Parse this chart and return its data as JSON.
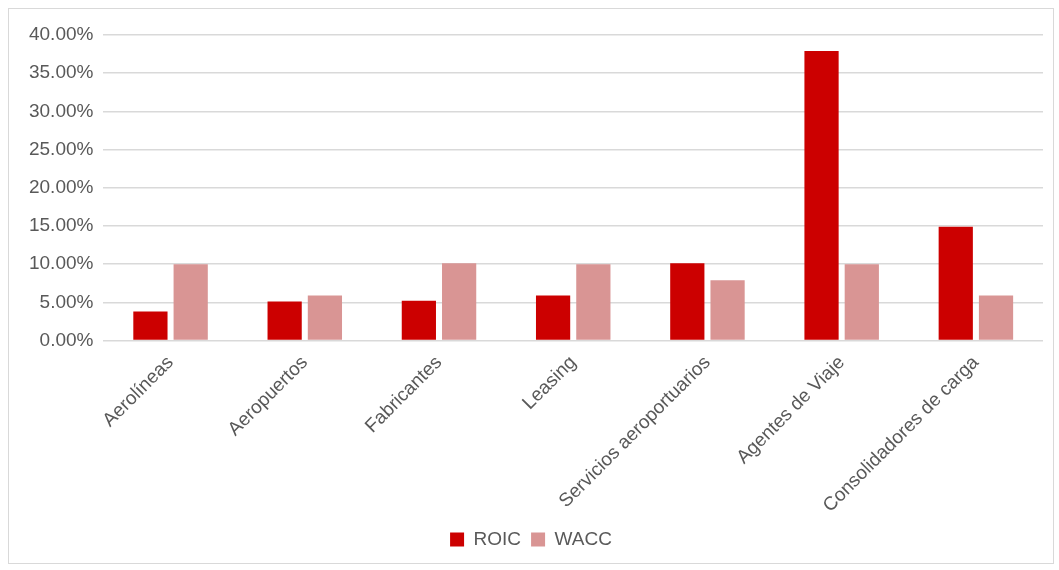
{
  "chart_data": {
    "type": "bar",
    "categories": [
      "Aerolíneas",
      "Aeropuertos",
      "Fabricantes",
      "Leasing",
      "Servicios aeroportuarios",
      "Agentes de Viaje",
      "Consolidadores de carga"
    ],
    "series": [
      {
        "name": "ROIC",
        "color": "#cc0000",
        "values": [
          3.8,
          5.1,
          5.2,
          5.9,
          10.1,
          37.9,
          14.9
        ]
      },
      {
        "name": "WACC",
        "color": "#d99594",
        "values": [
          10.0,
          5.9,
          10.1,
          10.0,
          7.9,
          10.0,
          5.9
        ]
      }
    ],
    "ylim": [
      0,
      40
    ],
    "yticks": [
      {
        "value": 0,
        "label": "0.00%"
      },
      {
        "value": 5,
        "label": "5.00%"
      },
      {
        "value": 10,
        "label": "10.00%"
      },
      {
        "value": 15,
        "label": "15.00%"
      },
      {
        "value": 20,
        "label": "20.00%"
      },
      {
        "value": 25,
        "label": "25.00%"
      },
      {
        "value": 30,
        "label": "30.00%"
      },
      {
        "value": 35,
        "label": "35.00%"
      },
      {
        "value": 40,
        "label": "40.00%"
      }
    ],
    "grid": "y",
    "legend": "bottom"
  }
}
